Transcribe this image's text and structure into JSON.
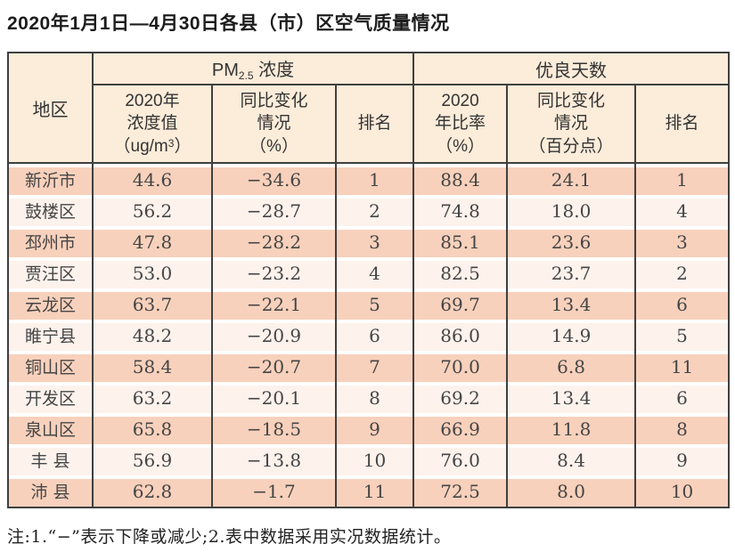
{
  "title": "2020年1月1日—4月30日各县（市）区空气质量情况",
  "table": {
    "region_header": "地区",
    "groups": {
      "pm": {
        "prefix": "PM",
        "subscript": "2.5",
        "suffix": " 浓度"
      },
      "good_days": {
        "label": "优良天数"
      }
    },
    "subheaders": {
      "pm_value": {
        "line1": "2020年",
        "line2": "浓度值",
        "unit_pre": "（ug/m",
        "unit_sup": "3",
        "unit_post": "）"
      },
      "pm_change": {
        "line1": "同比变化",
        "line2": "情况",
        "line3": "（%）"
      },
      "pm_rank": "排名",
      "good_ratio": {
        "line1": "2020",
        "line2": "年比率",
        "line3": "（%）"
      },
      "good_change": {
        "line1": "同比变化",
        "line2": "情况",
        "line3": "（百分点）"
      },
      "good_rank": "排名"
    },
    "rows": [
      {
        "region": "新沂市",
        "pm_value": "44.6",
        "pm_change": "−34.6",
        "pm_rank": "1",
        "good_ratio": "88.4",
        "good_change": "24.1",
        "good_rank": "1"
      },
      {
        "region": "鼓楼区",
        "pm_value": "56.2",
        "pm_change": "−28.7",
        "pm_rank": "2",
        "good_ratio": "74.8",
        "good_change": "18.0",
        "good_rank": "4"
      },
      {
        "region": "邳州市",
        "pm_value": "47.8",
        "pm_change": "−28.2",
        "pm_rank": "3",
        "good_ratio": "85.1",
        "good_change": "23.6",
        "good_rank": "3"
      },
      {
        "region": "贾汪区",
        "pm_value": "53.0",
        "pm_change": "−23.2",
        "pm_rank": "4",
        "good_ratio": "82.5",
        "good_change": "23.7",
        "good_rank": "2"
      },
      {
        "region": "云龙区",
        "pm_value": "63.7",
        "pm_change": "−22.1",
        "pm_rank": "5",
        "good_ratio": "69.7",
        "good_change": "13.4",
        "good_rank": "6"
      },
      {
        "region": "睢宁县",
        "pm_value": "48.2",
        "pm_change": "−20.9",
        "pm_rank": "6",
        "good_ratio": "86.0",
        "good_change": "14.9",
        "good_rank": "5"
      },
      {
        "region": "铜山区",
        "pm_value": "58.4",
        "pm_change": "−20.7",
        "pm_rank": "7",
        "good_ratio": "70.0",
        "good_change": "6.8",
        "good_rank": "11"
      },
      {
        "region": "开发区",
        "pm_value": "63.2",
        "pm_change": "−20.1",
        "pm_rank": "8",
        "good_ratio": "69.2",
        "good_change": "13.4",
        "good_rank": "6"
      },
      {
        "region": "泉山区",
        "pm_value": "65.8",
        "pm_change": "−18.5",
        "pm_rank": "9",
        "good_ratio": "66.9",
        "good_change": "11.8",
        "good_rank": "8"
      },
      {
        "region": "丰 县",
        "pm_value": "56.9",
        "pm_change": "−13.8",
        "pm_rank": "10",
        "good_ratio": "76.0",
        "good_change": "8.4",
        "good_rank": "9"
      },
      {
        "region": "沛 县",
        "pm_value": "62.8",
        "pm_change": "−1.7",
        "pm_rank": "11",
        "good_ratio": "72.5",
        "good_change": "8.0",
        "good_rank": "10"
      }
    ]
  },
  "footnote": "注:1.“−”表示下降或减少;2.表中数据采用实况数据统计。",
  "colors": {
    "header_bg": "#fcecda",
    "row_odd_bg": "#f8d1bc",
    "row_even_bg": "#fdf2ec",
    "border": "#3f3f3f",
    "title_text": "#1c1c1c",
    "data_text": "#454545"
  }
}
